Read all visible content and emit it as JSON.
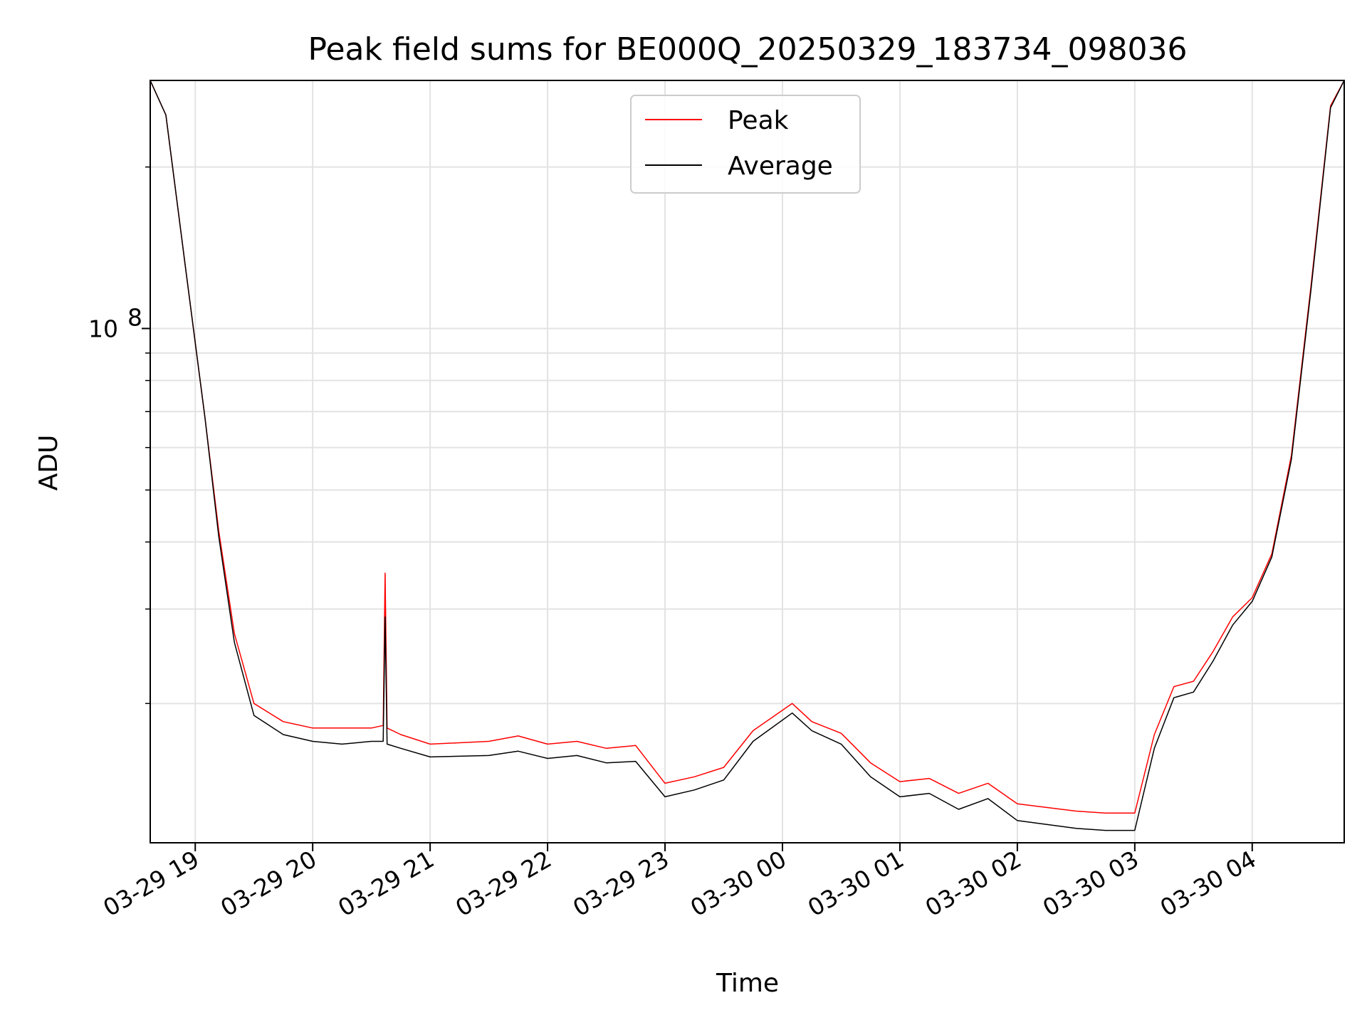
{
  "chart_data": {
    "type": "line",
    "title": "Peak field sums for BE000Q_20250329_183734_098036",
    "xlabel": "Time",
    "ylabel": "ADU",
    "x_scale": "time",
    "y_scale": "log",
    "xlim": [
      "2025-03-29 18:37",
      "2025-03-30 04:47"
    ],
    "ylim": [
      11000000,
      290000000
    ],
    "x_tick_labels": [
      "03-29 19",
      "03-29 20",
      "03-29 21",
      "03-29 22",
      "03-29 23",
      "03-30 00",
      "03-30 01",
      "03-30 02",
      "03-30 03",
      "03-30 04"
    ],
    "y_tick_labels": [
      {
        "base": "10",
        "exp": "8"
      }
    ],
    "grid": true,
    "legend_position": "top-center",
    "series": [
      {
        "name": "Peak",
        "color": "#ff0000",
        "x": [
          "2025-03-29 18:37",
          "2025-03-29 18:45",
          "2025-03-29 18:55",
          "2025-03-29 19:05",
          "2025-03-29 19:12",
          "2025-03-29 19:20",
          "2025-03-29 19:30",
          "2025-03-29 19:45",
          "2025-03-29 20:00",
          "2025-03-29 20:15",
          "2025-03-29 20:30",
          "2025-03-29 20:36",
          "2025-03-29 20:37",
          "2025-03-29 20:38",
          "2025-03-29 20:45",
          "2025-03-29 21:00",
          "2025-03-29 21:30",
          "2025-03-29 21:45",
          "2025-03-29 22:00",
          "2025-03-29 22:15",
          "2025-03-29 22:30",
          "2025-03-29 22:45",
          "2025-03-29 23:00",
          "2025-03-29 23:15",
          "2025-03-29 23:30",
          "2025-03-29 23:45",
          "2025-03-30 00:05",
          "2025-03-30 00:15",
          "2025-03-30 00:30",
          "2025-03-30 00:45",
          "2025-03-30 01:00",
          "2025-03-30 01:15",
          "2025-03-30 01:30",
          "2025-03-30 01:45",
          "2025-03-30 02:00",
          "2025-03-30 02:15",
          "2025-03-30 02:30",
          "2025-03-30 02:45",
          "2025-03-30 03:00",
          "2025-03-30 03:10",
          "2025-03-30 03:20",
          "2025-03-30 03:30",
          "2025-03-30 03:40",
          "2025-03-30 03:50",
          "2025-03-30 04:00",
          "2025-03-30 04:10",
          "2025-03-30 04:20",
          "2025-03-30 04:30",
          "2025-03-30 04:40",
          "2025-03-30 04:47"
        ],
        "y": [
          290000000,
          250000000,
          130000000,
          68000000,
          42000000,
          27000000,
          20000000,
          18500000,
          18000000,
          18000000,
          18000000,
          18200000,
          35000000,
          18000000,
          17500000,
          16800000,
          17000000,
          17400000,
          16800000,
          17000000,
          16500000,
          16700000,
          14200000,
          14600000,
          15200000,
          17800000,
          20000000,
          18500000,
          17600000,
          15500000,
          14300000,
          14500000,
          13600000,
          14200000,
          13000000,
          12800000,
          12600000,
          12500000,
          12500000,
          17500000,
          21500000,
          22000000,
          25000000,
          29000000,
          31500000,
          38000000,
          58000000,
          120000000,
          260000000,
          290000000
        ]
      },
      {
        "name": "Average",
        "color": "#000000",
        "x": [
          "2025-03-29 18:37",
          "2025-03-29 18:45",
          "2025-03-29 18:55",
          "2025-03-29 19:05",
          "2025-03-29 19:12",
          "2025-03-29 19:20",
          "2025-03-29 19:30",
          "2025-03-29 19:45",
          "2025-03-29 20:00",
          "2025-03-29 20:15",
          "2025-03-29 20:30",
          "2025-03-29 20:36",
          "2025-03-29 20:37",
          "2025-03-29 20:38",
          "2025-03-29 20:45",
          "2025-03-29 21:00",
          "2025-03-29 21:30",
          "2025-03-29 21:45",
          "2025-03-29 22:00",
          "2025-03-29 22:15",
          "2025-03-29 22:30",
          "2025-03-29 22:45",
          "2025-03-29 23:00",
          "2025-03-29 23:15",
          "2025-03-29 23:30",
          "2025-03-29 23:45",
          "2025-03-30 00:05",
          "2025-03-30 00:15",
          "2025-03-30 00:30",
          "2025-03-30 00:45",
          "2025-03-30 01:00",
          "2025-03-30 01:15",
          "2025-03-30 01:30",
          "2025-03-30 01:45",
          "2025-03-30 02:00",
          "2025-03-30 02:15",
          "2025-03-30 02:30",
          "2025-03-30 02:45",
          "2025-03-30 03:00",
          "2025-03-30 03:10",
          "2025-03-30 03:20",
          "2025-03-30 03:30",
          "2025-03-30 03:40",
          "2025-03-30 03:50",
          "2025-03-30 04:00",
          "2025-03-30 04:10",
          "2025-03-30 04:20",
          "2025-03-30 04:30",
          "2025-03-30 04:40",
          "2025-03-30 04:47"
        ],
        "y": [
          290000000,
          250000000,
          130000000,
          68000000,
          41000000,
          26000000,
          19000000,
          17500000,
          17000000,
          16800000,
          17000000,
          17000000,
          29000000,
          16800000,
          16500000,
          15900000,
          16000000,
          16300000,
          15800000,
          16000000,
          15500000,
          15600000,
          13400000,
          13800000,
          14400000,
          17000000,
          19200000,
          17800000,
          16800000,
          14600000,
          13400000,
          13600000,
          12700000,
          13300000,
          12100000,
          11900000,
          11700000,
          11600000,
          11600000,
          16500000,
          20500000,
          21000000,
          24000000,
          28000000,
          31000000,
          37500000,
          57000000,
          118000000,
          258000000,
          290000000
        ]
      }
    ]
  }
}
